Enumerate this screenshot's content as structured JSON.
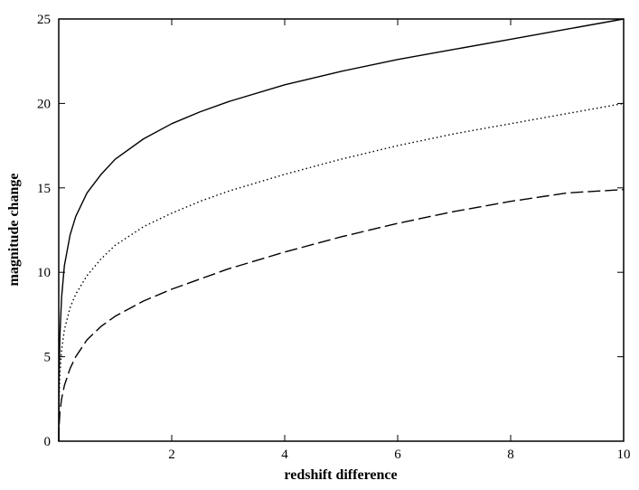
{
  "chart_data": {
    "type": "line",
    "xlabel": "redshift difference",
    "ylabel": "magnitude change",
    "xlim": [
      0,
      10
    ],
    "ylim": [
      0,
      25
    ],
    "x_ticks": [
      2,
      4,
      6,
      8,
      10
    ],
    "y_ticks": [
      0,
      5,
      10,
      15,
      20,
      25
    ],
    "grid": false,
    "legend": "none",
    "x": [
      0,
      0.005,
      0.02,
      0.05,
      0.1,
      0.2,
      0.3,
      0.5,
      0.75,
      1,
      1.5,
      2,
      2.5,
      3,
      4,
      5,
      6,
      7,
      8,
      9,
      10
    ],
    "series": [
      {
        "style": "solid",
        "color": "#000000",
        "values": [
          0,
          3.5,
          6.2,
          8.5,
          10.4,
          12.2,
          13.3,
          14.7,
          15.8,
          16.7,
          17.9,
          18.8,
          19.5,
          20.1,
          21.1,
          21.9,
          22.6,
          23.2,
          23.8,
          24.4,
          25.0
        ]
      },
      {
        "style": "dotted",
        "color": "#000000",
        "values": [
          0,
          2.2,
          4.0,
          5.4,
          6.6,
          7.9,
          8.7,
          9.8,
          10.8,
          11.6,
          12.7,
          13.5,
          14.2,
          14.8,
          15.8,
          16.7,
          17.5,
          18.2,
          18.8,
          19.4,
          20.0
        ]
      },
      {
        "style": "dashed",
        "color": "#000000",
        "values": [
          0,
          0.8,
          1.7,
          2.5,
          3.3,
          4.3,
          5.0,
          6.0,
          6.8,
          7.4,
          8.3,
          9.0,
          9.6,
          10.2,
          11.2,
          12.1,
          12.9,
          13.6,
          14.2,
          14.7,
          14.9
        ]
      }
    ]
  }
}
